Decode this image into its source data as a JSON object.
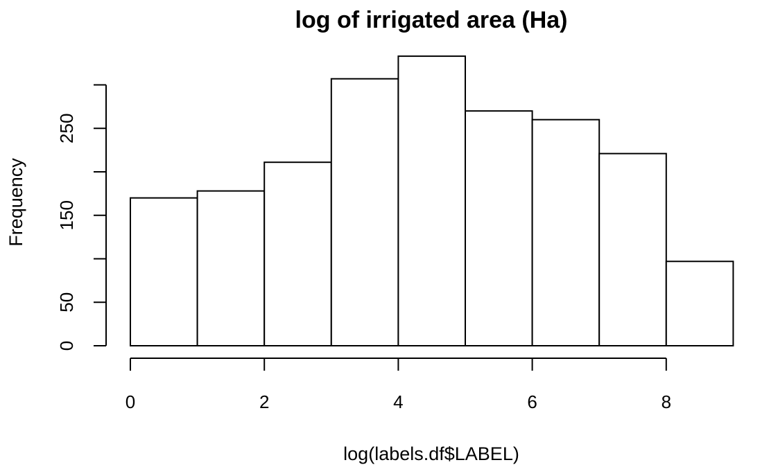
{
  "chart_data": {
    "type": "bar",
    "title": "log of irrigated area (Ha)",
    "xlabel": "log(labels.df$LABEL)",
    "ylabel": "Frequency",
    "bins": [
      [
        0,
        1
      ],
      [
        1,
        2
      ],
      [
        2,
        3
      ],
      [
        3,
        4
      ],
      [
        4,
        5
      ],
      [
        5,
        6
      ],
      [
        6,
        7
      ],
      [
        7,
        8
      ],
      [
        8,
        9
      ]
    ],
    "values": [
      170,
      178,
      211,
      307,
      333,
      270,
      260,
      221,
      97
    ],
    "xlim": [
      0,
      9
    ],
    "ylim": [
      0,
      333
    ],
    "x_ticks": [
      0,
      2,
      4,
      6,
      8
    ],
    "x_tick_labels": [
      "0",
      "2",
      "4",
      "6",
      "8"
    ],
    "y_ticks": [
      0,
      50,
      100,
      150,
      200,
      250,
      300
    ],
    "y_tick_labels": [
      "0",
      "50",
      "",
      "150",
      "",
      "250",
      ""
    ],
    "grid": false,
    "bar_fill": "#ffffff",
    "bar_stroke": "#000000"
  }
}
